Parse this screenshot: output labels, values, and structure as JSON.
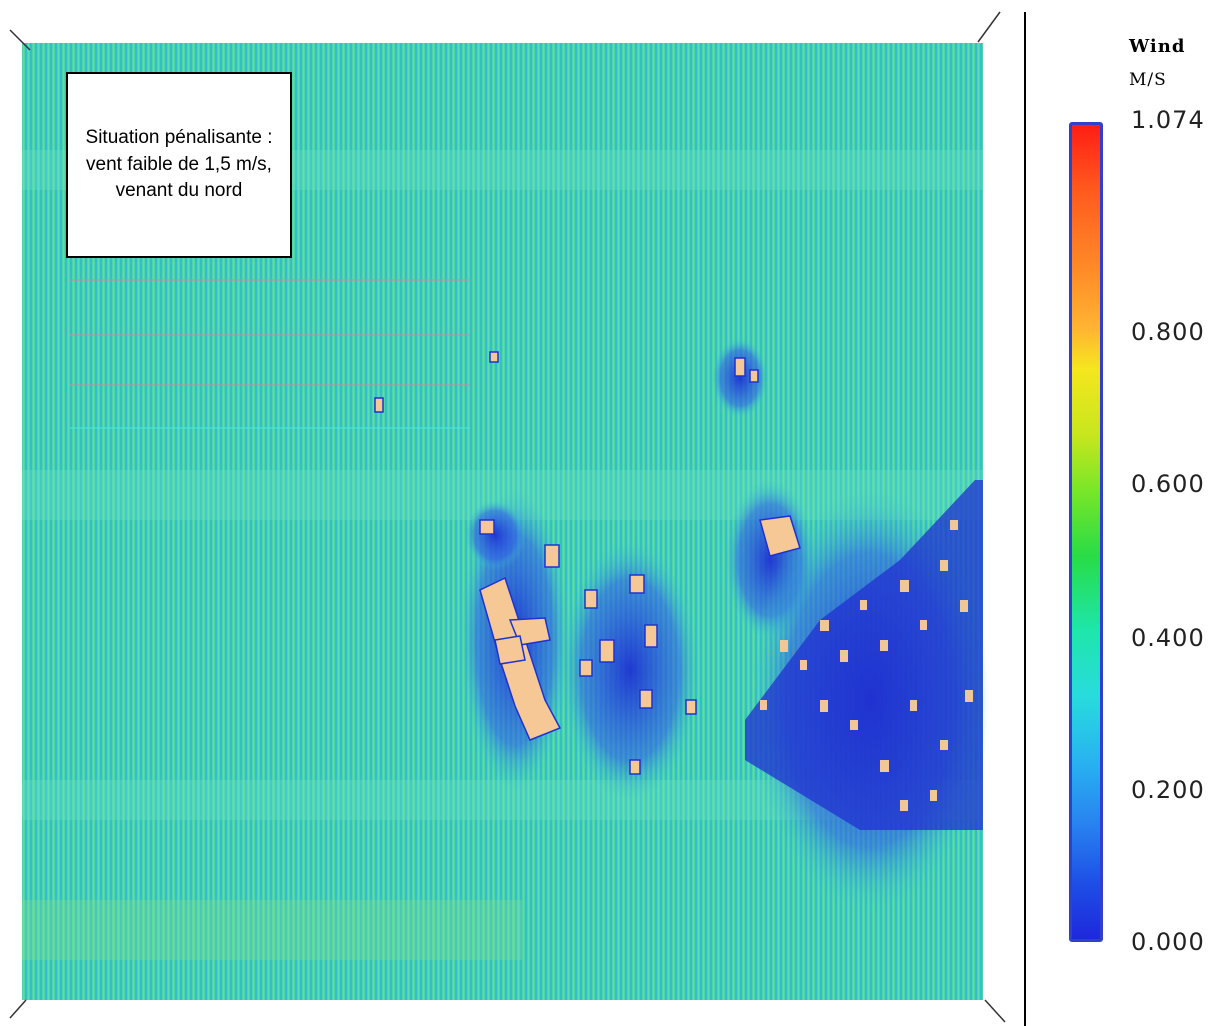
{
  "note": {
    "text": "Situation pénalisante : vent faible de 1,5 m/s, venant du nord"
  },
  "legend": {
    "title": "Wind",
    "unit": "M/S",
    "ticks": [
      "1.074",
      "0.800",
      "0.600",
      "0.400",
      "0.200",
      "0.000"
    ],
    "min": 0.0,
    "max": 1.074,
    "colors": [
      "#1e28dc",
      "#2882f0",
      "#28dcdc",
      "#28dc46",
      "#f5e61e",
      "#ff8c28",
      "#ff1e14"
    ]
  },
  "map": {
    "background_color": "#3cc8a0",
    "streamline_color": "#28a0c8",
    "building_color": "#f5c896",
    "wake_color": "#1e32d2"
  }
}
